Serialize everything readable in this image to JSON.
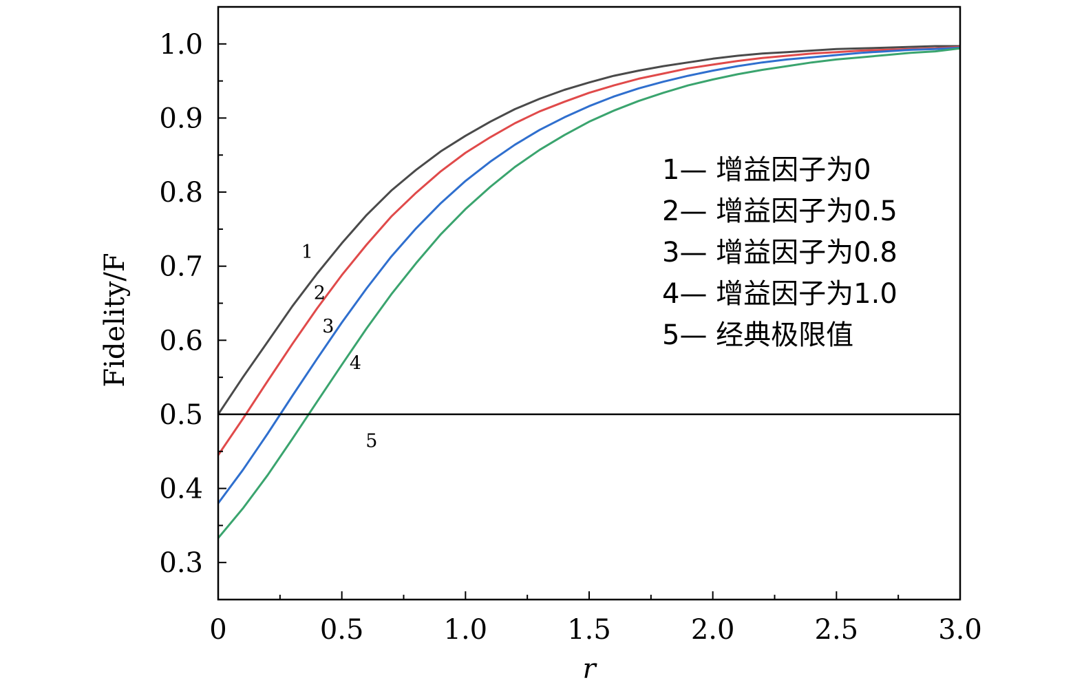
{
  "chart_data": {
    "type": "line",
    "title": "",
    "xlabel": "r",
    "ylabel": "Fidelity/F",
    "xlim": [
      0,
      3.0
    ],
    "ylim": [
      0.25,
      1.05
    ],
    "x_ticks": [
      {
        "value": 0,
        "label": "0"
      },
      {
        "value": 0.5,
        "label": "0.5"
      },
      {
        "value": 1.0,
        "label": "1.0"
      },
      {
        "value": 1.5,
        "label": "1.5"
      },
      {
        "value": 2.0,
        "label": "2.0"
      },
      {
        "value": 2.5,
        "label": "2.5"
      },
      {
        "value": 3.0,
        "label": "3.0"
      }
    ],
    "y_ticks": [
      {
        "value": 0.3,
        "label": "0.3"
      },
      {
        "value": 0.4,
        "label": "0.4"
      },
      {
        "value": 0.5,
        "label": "0.5"
      },
      {
        "value": 0.6,
        "label": "0.6"
      },
      {
        "value": 0.7,
        "label": "0.7"
      },
      {
        "value": 0.8,
        "label": "0.8"
      },
      {
        "value": 0.9,
        "label": "0.9"
      },
      {
        "value": 1.0,
        "label": "1.0"
      }
    ],
    "grid": false,
    "legend_position": "right",
    "x": [
      0,
      0.1,
      0.2,
      0.3,
      0.4,
      0.5,
      0.6,
      0.7,
      0.8,
      0.9,
      1.0,
      1.1,
      1.2,
      1.3,
      1.4,
      1.5,
      1.6,
      1.7,
      1.8,
      1.9,
      2.0,
      2.1,
      2.2,
      2.3,
      2.4,
      2.5,
      2.6,
      2.7,
      2.8,
      2.9,
      3.0
    ],
    "series": [
      {
        "label": "1",
        "color": "#4a4a4a",
        "values": [
          0.5,
          0.55,
          0.598,
          0.646,
          0.69,
          0.731,
          0.769,
          0.802,
          0.83,
          0.855,
          0.876,
          0.895,
          0.912,
          0.926,
          0.938,
          0.948,
          0.957,
          0.964,
          0.97,
          0.975,
          0.98,
          0.984,
          0.987,
          0.989,
          0.991,
          0.993,
          0.994,
          0.995,
          0.996,
          0.997,
          0.997
        ]
      },
      {
        "label": "2",
        "color": "#e04a4a",
        "values": [
          0.445,
          0.494,
          0.545,
          0.595,
          0.643,
          0.688,
          0.729,
          0.767,
          0.799,
          0.828,
          0.853,
          0.874,
          0.893,
          0.909,
          0.922,
          0.934,
          0.944,
          0.953,
          0.96,
          0.967,
          0.972,
          0.977,
          0.981,
          0.984,
          0.987,
          0.989,
          0.991,
          0.992,
          0.993,
          0.994,
          0.996
        ]
      },
      {
        "label": "3",
        "color": "#2f6fce",
        "values": [
          0.38,
          0.425,
          0.474,
          0.525,
          0.575,
          0.624,
          0.67,
          0.713,
          0.751,
          0.785,
          0.815,
          0.841,
          0.864,
          0.884,
          0.901,
          0.916,
          0.929,
          0.94,
          0.949,
          0.957,
          0.964,
          0.97,
          0.975,
          0.979,
          0.982,
          0.985,
          0.988,
          0.99,
          0.992,
          0.993,
          0.995
        ]
      },
      {
        "label": "4",
        "color": "#3aa46e",
        "values": [
          0.333,
          0.373,
          0.418,
          0.467,
          0.517,
          0.567,
          0.616,
          0.662,
          0.704,
          0.743,
          0.777,
          0.807,
          0.834,
          0.857,
          0.877,
          0.895,
          0.91,
          0.923,
          0.934,
          0.944,
          0.952,
          0.959,
          0.965,
          0.97,
          0.975,
          0.979,
          0.982,
          0.985,
          0.988,
          0.99,
          0.994
        ]
      },
      {
        "label": "5",
        "color": "#000000",
        "values": [
          0.5,
          0.5,
          0.5,
          0.5,
          0.5,
          0.5,
          0.5,
          0.5,
          0.5,
          0.5,
          0.5,
          0.5,
          0.5,
          0.5,
          0.5,
          0.5,
          0.5,
          0.5,
          0.5,
          0.5,
          0.5,
          0.5,
          0.5,
          0.5,
          0.5,
          0.5,
          0.5,
          0.5,
          0.5,
          0.5,
          0.5
        ]
      }
    ],
    "curve_labels": [
      {
        "text": "1",
        "x": 0.36,
        "y": 0.72
      },
      {
        "text": "2",
        "x": 0.41,
        "y": 0.665
      },
      {
        "text": "3",
        "x": 0.445,
        "y": 0.62
      },
      {
        "text": "4",
        "x": 0.555,
        "y": 0.57
      },
      {
        "text": "5",
        "x": 0.62,
        "y": 0.465
      }
    ],
    "legend": [
      "1— 增益因子为0",
      "2— 增益因子为0.5",
      "3— 增益因子为0.8",
      "4— 增益因子为1.0",
      "5— 经典极限值"
    ]
  }
}
